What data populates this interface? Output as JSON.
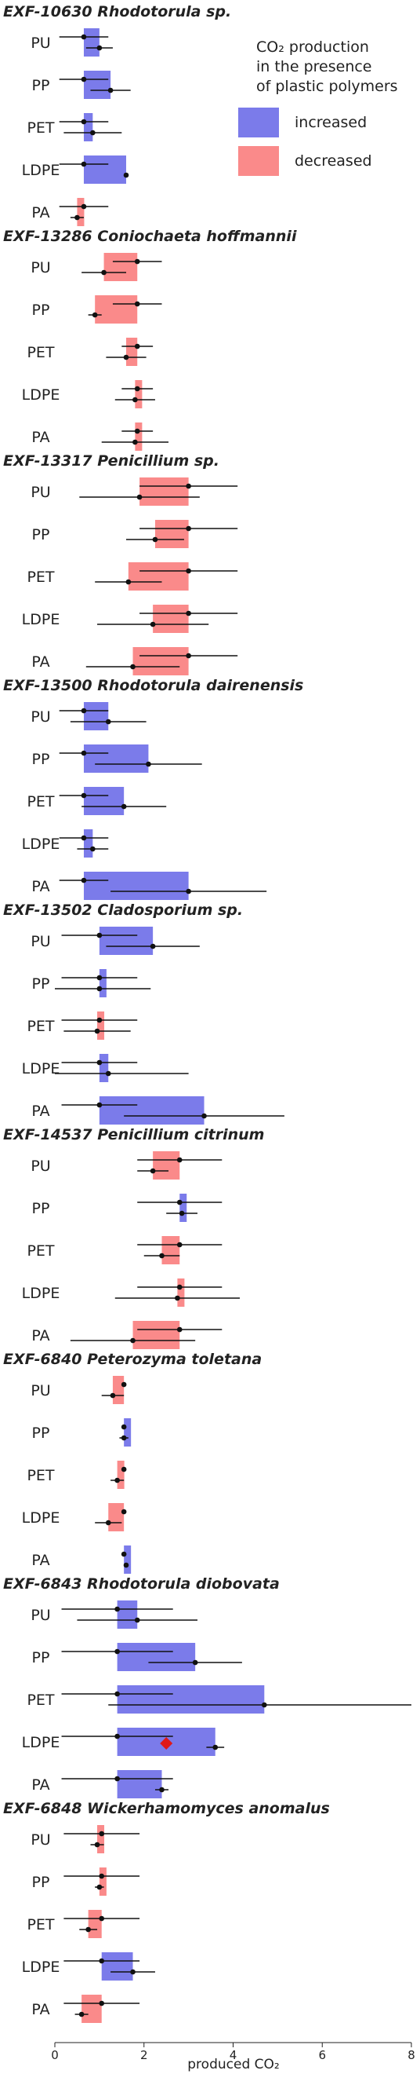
{
  "chart_data": {
    "type": "bar",
    "xlabel": "produced CO₂",
    "xlim": [
      0,
      8
    ],
    "xticks": [
      0,
      2,
      4,
      6,
      8
    ],
    "legend": {
      "title_line1": "CO₂ production",
      "title_line2": "in the presence",
      "title_line3": "of plastic polymers",
      "position": "top-right",
      "entries": [
        {
          "label": "increased",
          "color": "#7b7bea"
        },
        {
          "label": "decreased",
          "color": "#fa8a8a"
        }
      ]
    },
    "colors": {
      "increased": "#7b7bea",
      "decreased": "#fa8a8a",
      "marker": "#111111",
      "highlight": "#e01818"
    },
    "panels": [
      {
        "title": "EXF-10630 Rhodotorula sp.",
        "rows": [
          {
            "category": "PU",
            "control": 0.65,
            "control_err": 0.55,
            "treated": 1.0,
            "treated_err": 0.3
          },
          {
            "category": "PP",
            "control": 0.65,
            "control_err": 0.55,
            "treated": 1.25,
            "treated_err": 0.45
          },
          {
            "category": "PET",
            "control": 0.65,
            "control_err": 0.55,
            "treated": 0.85,
            "treated_err": 0.65
          },
          {
            "category": "LDPE",
            "control": 0.65,
            "control_err": 0.55,
            "treated": 1.6,
            "treated_err": 0.05
          },
          {
            "category": "PA",
            "control": 0.65,
            "control_err": 0.55,
            "treated": 0.5,
            "treated_err": 0.15
          }
        ]
      },
      {
        "title": "EXF-13286 Coniochaeta hoffmannii",
        "rows": [
          {
            "category": "PU",
            "control": 1.85,
            "control_err": 0.55,
            "treated": 1.1,
            "treated_err": 0.5
          },
          {
            "category": "PP",
            "control": 1.85,
            "control_err": 0.55,
            "treated": 0.9,
            "treated_err": 0.15
          },
          {
            "category": "PET",
            "control": 1.85,
            "control_err": 0.35,
            "treated": 1.6,
            "treated_err": 0.45
          },
          {
            "category": "LDPE",
            "control": 1.85,
            "control_err": 0.35,
            "treated": 1.8,
            "treated_err": 0.45
          },
          {
            "category": "PA",
            "control": 1.85,
            "control_err": 0.35,
            "treated": 1.8,
            "treated_err": 0.75
          }
        ]
      },
      {
        "title": "EXF-13317 Penicillium sp.",
        "rows": [
          {
            "category": "PU",
            "control": 3.0,
            "control_err": 1.1,
            "treated": 1.9,
            "treated_err": 1.35
          },
          {
            "category": "PP",
            "control": 3.0,
            "control_err": 1.1,
            "treated": 2.25,
            "treated_err": 0.65
          },
          {
            "category": "PET",
            "control": 3.0,
            "control_err": 1.1,
            "treated": 1.65,
            "treated_err": 0.75
          },
          {
            "category": "LDPE",
            "control": 3.0,
            "control_err": 1.1,
            "treated": 2.2,
            "treated_err": 1.25
          },
          {
            "category": "PA",
            "control": 3.0,
            "control_err": 1.1,
            "treated": 1.75,
            "treated_err": 1.05
          }
        ]
      },
      {
        "title": "EXF-13500 Rhodotorula dairenensis",
        "rows": [
          {
            "category": "PU",
            "control": 0.65,
            "control_err": 0.55,
            "treated": 1.2,
            "treated_err": 0.85
          },
          {
            "category": "PP",
            "control": 0.65,
            "control_err": 0.55,
            "treated": 2.1,
            "treated_err": 1.2
          },
          {
            "category": "PET",
            "control": 0.65,
            "control_err": 0.55,
            "treated": 1.55,
            "treated_err": 0.95
          },
          {
            "category": "LDPE",
            "control": 0.65,
            "control_err": 0.55,
            "treated": 0.85,
            "treated_err": 0.35
          },
          {
            "category": "PA",
            "control": 0.65,
            "control_err": 0.55,
            "treated": 3.0,
            "treated_err": 1.75
          }
        ]
      },
      {
        "title": "EXF-13502 Cladosporium sp.",
        "rows": [
          {
            "category": "PU",
            "control": 1.0,
            "control_err": 0.85,
            "treated": 2.2,
            "treated_err": 1.05
          },
          {
            "category": "PP",
            "control": 1.0,
            "control_err": 0.85,
            "treated": 1.0,
            "treated_err": 1.15
          },
          {
            "category": "PET",
            "control": 1.0,
            "control_err": 0.85,
            "treated": 0.95,
            "treated_err": 0.75
          },
          {
            "category": "LDPE",
            "control": 1.0,
            "control_err": 0.85,
            "treated": 1.2,
            "treated_err": 1.8
          },
          {
            "category": "PA",
            "control": 1.0,
            "control_err": 0.85,
            "treated": 3.35,
            "treated_err": 1.8
          }
        ]
      },
      {
        "title": "EXF-14537 Penicillium citrinum",
        "rows": [
          {
            "category": "PU",
            "control": 2.8,
            "control_err": 0.95,
            "treated": 2.2,
            "treated_err": 0.35
          },
          {
            "category": "PP",
            "control": 2.8,
            "control_err": 0.95,
            "treated": 2.85,
            "treated_err": 0.35
          },
          {
            "category": "PET",
            "control": 2.8,
            "control_err": 0.95,
            "treated": 2.4,
            "treated_err": 0.4
          },
          {
            "category": "LDPE",
            "control": 2.8,
            "control_err": 0.95,
            "treated": 2.75,
            "treated_err": 1.4
          },
          {
            "category": "PA",
            "control": 2.8,
            "control_err": 0.95,
            "treated": 1.75,
            "treated_err": 1.4
          }
        ]
      },
      {
        "title": "EXF-6840 Peterozyma toletana",
        "rows": [
          {
            "category": "PU",
            "control": 1.55,
            "control_err": 0.05,
            "treated": 1.3,
            "treated_err": 0.25
          },
          {
            "category": "PP",
            "control": 1.55,
            "control_err": 0.05,
            "treated": 1.55,
            "treated_err": 0.1
          },
          {
            "category": "PET",
            "control": 1.55,
            "control_err": 0.05,
            "treated": 1.4,
            "treated_err": 0.15
          },
          {
            "category": "LDPE",
            "control": 1.55,
            "control_err": 0.05,
            "treated": 1.2,
            "treated_err": 0.3
          },
          {
            "category": "PA",
            "control": 1.55,
            "control_err": 0.05,
            "treated": 1.6,
            "treated_err": 0.05
          }
        ]
      },
      {
        "title": "EXF-6843 Rhodotorula diobovata",
        "rows": [
          {
            "category": "PU",
            "control": 1.4,
            "control_err": 1.25,
            "treated": 1.85,
            "treated_err": 1.35
          },
          {
            "category": "PP",
            "control": 1.4,
            "control_err": 1.25,
            "treated": 3.15,
            "treated_err": 1.05
          },
          {
            "category": "PET",
            "control": 1.4,
            "control_err": 1.25,
            "treated": 4.7,
            "treated_err": 3.5
          },
          {
            "category": "LDPE",
            "control": 1.4,
            "control_err": 1.25,
            "treated": 3.6,
            "treated_err": 0.2,
            "highlight": 2.5
          },
          {
            "category": "PA",
            "control": 1.4,
            "control_err": 1.25,
            "treated": 2.4,
            "treated_err": 0.15
          }
        ]
      },
      {
        "title": "EXF-6848 Wickerhamomyces anomalus",
        "rows": [
          {
            "category": "PU",
            "control": 1.05,
            "control_err": 0.85,
            "treated": 0.95,
            "treated_err": 0.15
          },
          {
            "category": "PP",
            "control": 1.05,
            "control_err": 0.85,
            "treated": 1.0,
            "treated_err": 0.1
          },
          {
            "category": "PET",
            "control": 1.05,
            "control_err": 0.85,
            "treated": 0.75,
            "treated_err": 0.2
          },
          {
            "category": "LDPE",
            "control": 1.05,
            "control_err": 0.85,
            "treated": 1.75,
            "treated_err": 0.5
          },
          {
            "category": "PA",
            "control": 1.05,
            "control_err": 0.85,
            "treated": 0.6,
            "treated_err": 0.15
          }
        ]
      }
    ]
  }
}
